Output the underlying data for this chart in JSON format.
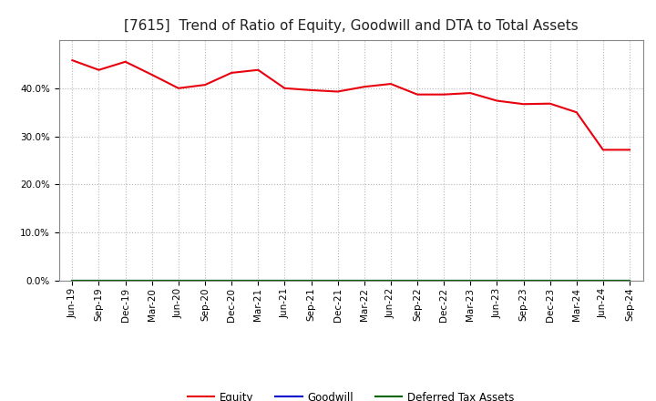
{
  "title": "[7615]  Trend of Ratio of Equity, Goodwill and DTA to Total Assets",
  "x_labels": [
    "Jun-19",
    "Sep-19",
    "Dec-19",
    "Mar-20",
    "Jun-20",
    "Sep-20",
    "Dec-20",
    "Mar-21",
    "Jun-21",
    "Sep-21",
    "Dec-21",
    "Mar-22",
    "Jun-22",
    "Sep-22",
    "Dec-22",
    "Mar-23",
    "Jun-23",
    "Sep-23",
    "Dec-23",
    "Mar-24",
    "Jun-24",
    "Sep-24"
  ],
  "equity": [
    0.458,
    0.438,
    0.455,
    0.428,
    0.4,
    0.407,
    0.432,
    0.438,
    0.4,
    0.396,
    0.393,
    0.403,
    0.409,
    0.387,
    0.387,
    0.39,
    0.374,
    0.367,
    0.368,
    0.35,
    0.272,
    0.272
  ],
  "goodwill": [
    0.0,
    0.0,
    0.0,
    0.0,
    0.0,
    0.0,
    0.0,
    0.0,
    0.0,
    0.0,
    0.0,
    0.0,
    0.0,
    0.0,
    0.0,
    0.0,
    0.0,
    0.0,
    0.0,
    0.0,
    0.0,
    0.0
  ],
  "dta": [
    0.0,
    0.0,
    0.0,
    0.0,
    0.0,
    0.0,
    0.0,
    0.0,
    0.0,
    0.0,
    0.0,
    0.0,
    0.0,
    0.0,
    0.0,
    0.0,
    0.0,
    0.0,
    0.0,
    0.0,
    0.0,
    0.0
  ],
  "equity_color": "#e8000d",
  "goodwill_color": "#0000cc",
  "dta_color": "#006400",
  "ylim_min": 0.0,
  "ylim_max": 0.5,
  "yticks": [
    0.0,
    0.1,
    0.2,
    0.3,
    0.4
  ],
  "background_color": "#ffffff",
  "plot_bg_color": "#ffffff",
  "grid_color": "#b0b0b0",
  "title_fontsize": 11,
  "tick_fontsize": 7.5,
  "legend_labels": [
    "Equity",
    "Goodwill",
    "Deferred Tax Assets"
  ]
}
